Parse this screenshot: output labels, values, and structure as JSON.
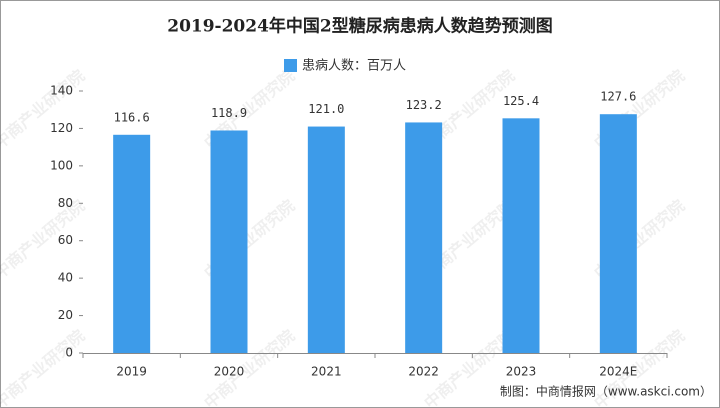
{
  "chart_data": {
    "type": "bar",
    "title": "2019-2024年中国2型糖尿病患病人数趋势预测图",
    "legend": "患病人数：百万人",
    "categories": [
      "2019",
      "2020",
      "2021",
      "2022",
      "2023",
      "2024E"
    ],
    "values": [
      116.6,
      118.9,
      121.0,
      123.2,
      125.4,
      127.6
    ],
    "value_labels": [
      "116.6",
      "118.9",
      "121.0",
      "123.2",
      "125.4",
      "127.6"
    ],
    "color": "#3d9be9",
    "ylim": [
      0,
      140
    ],
    "yticks": [
      0,
      20,
      40,
      60,
      80,
      100,
      120,
      140
    ],
    "grid": false,
    "source": "制图：中商情报网（www.askci.com）",
    "watermark": "中商产业研究院"
  }
}
